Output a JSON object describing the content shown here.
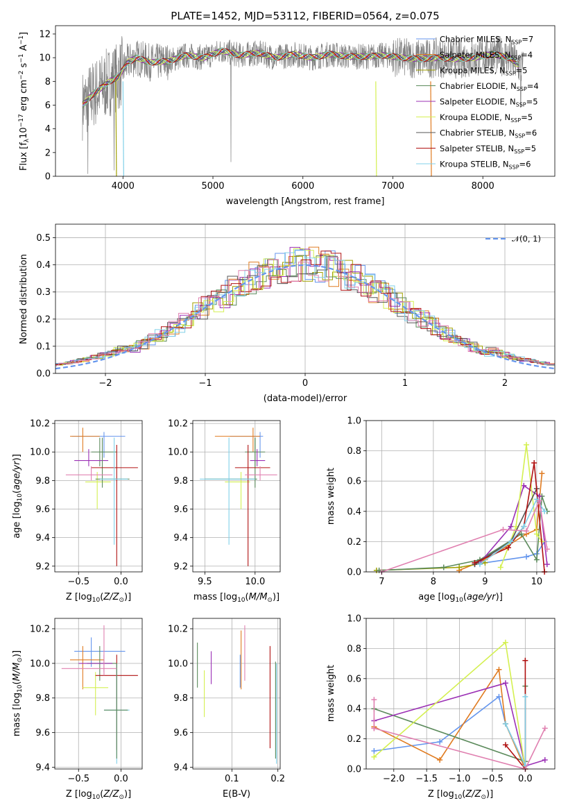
{
  "colors": {
    "c1": "#6495ed",
    "c2": "#e07b20",
    "c3": "#a0a000",
    "c4": "#5b8a5b",
    "c5": "#9b30b5",
    "c6": "#d4f050",
    "c7": "#555555",
    "c8": "#b01010",
    "c9": "#80d0e8",
    "c10": "#e080b0",
    "gray": "#808080"
  },
  "chart_data": [
    {
      "id": "spectrum",
      "type": "line",
      "title": "PLATE=1452, MJD=53112, FIBERID=0564, z=0.075",
      "xlabel": "wavelength [Angstrom, rest frame]",
      "ylabel": "Flux [f",
      "xlim": [
        3250,
        8800
      ],
      "ylim": [
        0,
        12.7
      ],
      "xticks": [
        4000,
        5000,
        6000,
        7000,
        8000
      ],
      "yticks": [
        0,
        2,
        4,
        6,
        8,
        10,
        12
      ],
      "legend": "top-right",
      "series": [
        {
          "name": "Chabrier MILES, N",
          "n": "7",
          "color": "c1"
        },
        {
          "name": "Salpeter MILES, N",
          "n": "4",
          "color": "c2"
        },
        {
          "name": "Kroupa MILES, N",
          "n": "5",
          "color": "c3"
        },
        {
          "name": "Chabrier ELODIE, N",
          "n": "4",
          "color": "c4"
        },
        {
          "name": "Salpeter ELODIE, N",
          "n": "5",
          "color": "c5"
        },
        {
          "name": "Kroupa ELODIE, N",
          "n": "5",
          "color": "c6"
        },
        {
          "name": "Chabrier STELIB, N",
          "n": "6",
          "color": "c7"
        },
        {
          "name": "Salpeter STELIB, N",
          "n": "5",
          "color": "c8"
        },
        {
          "name": "Kroupa STELIB, N",
          "n": "6",
          "color": "c9"
        }
      ],
      "model_curve": {
        "x": [
          3550,
          3650,
          3750,
          3850,
          3950,
          4050,
          4150,
          4300,
          4500,
          4700,
          4900,
          5100,
          5300,
          5500,
          5700,
          5900,
          6100,
          6300,
          6500,
          6700,
          6900,
          7100,
          7300,
          7500,
          7700,
          7900,
          8100,
          8300,
          8450
        ],
        "y": [
          6.0,
          6.8,
          7.4,
          8.0,
          8.4,
          9.6,
          10.0,
          9.6,
          9.7,
          10.2,
          10.0,
          10.6,
          10.2,
          10.4,
          10.0,
          10.3,
          10.0,
          10.3,
          10.1,
          10.1,
          10.2,
          10.0,
          9.9,
          10.0,
          9.9,
          10.0,
          10.3,
          10.0,
          9.0
        ]
      },
      "model_dropouts": [
        {
          "x": 3920,
          "color": "c3"
        },
        {
          "x": 4000,
          "color": "c9"
        },
        {
          "x": 6810,
          "color": "c6"
        },
        {
          "x": 7420,
          "color": "c2"
        }
      ]
    },
    {
      "id": "residuals",
      "type": "line",
      "xlabel": "(data-model)/error",
      "ylabel": "Normed distribution",
      "xlim": [
        -2.5,
        2.5
      ],
      "ylim": [
        0,
        0.55
      ],
      "xticks": [
        -2,
        -1,
        0,
        1,
        2
      ],
      "yticks": [
        0.0,
        0.1,
        0.2,
        0.3,
        0.4,
        0.5
      ],
      "legend": "top-right",
      "series": [
        {
          "name": "𝒩(0, 1)",
          "color": "c1",
          "style": "dashed"
        }
      ]
    },
    {
      "id": "z-age",
      "type": "scatter",
      "xlabel": "Z [log",
      "ylabel": "age  [log",
      "xlim": [
        -0.78,
        0.25
      ],
      "ylim": [
        9.16,
        10.22
      ],
      "xticks": [
        -0.5,
        0.0
      ],
      "yticks": [
        9.2,
        9.4,
        9.6,
        9.8,
        10.0,
        10.2
      ],
      "points": [
        {
          "x": -0.2,
          "y": 10.11,
          "xlo": -0.58,
          "xhi": 0.05,
          "ylo": 9.96,
          "yhi": 10.14,
          "c": "c1"
        },
        {
          "x": -0.45,
          "y": 10.11,
          "xlo": -0.6,
          "xhi": -0.25,
          "ylo": 10.0,
          "yhi": 10.17,
          "c": "c2"
        },
        {
          "x": -0.25,
          "y": 10.0,
          "xlo": -0.35,
          "xhi": -0.05,
          "ylo": 9.9,
          "yhi": 10.1,
          "c": "c4"
        },
        {
          "x": -0.38,
          "y": 9.94,
          "xlo": -0.55,
          "xhi": -0.15,
          "ylo": 9.9,
          "yhi": 10.02,
          "c": "c5"
        },
        {
          "x": -0.28,
          "y": 9.79,
          "xlo": -0.42,
          "xhi": -0.12,
          "ylo": 9.6,
          "yhi": 9.86,
          "c": "c6"
        },
        {
          "x": -0.22,
          "y": 9.81,
          "xlo": -0.3,
          "xhi": 0.1,
          "ylo": 9.75,
          "yhi": 10.1,
          "c": "c4"
        },
        {
          "x": -0.05,
          "y": 9.89,
          "xlo": -0.35,
          "xhi": 0.2,
          "ylo": 9.2,
          "yhi": 10.05,
          "c": "c8"
        },
        {
          "x": -0.08,
          "y": 9.81,
          "xlo": -0.25,
          "xhi": 0.08,
          "ylo": 9.35,
          "yhi": 10.1,
          "c": "c9"
        },
        {
          "x": -0.35,
          "y": 9.84,
          "xlo": -0.65,
          "xhi": -0.1,
          "ylo": 9.8,
          "yhi": 9.9,
          "c": "c10"
        }
      ]
    },
    {
      "id": "mass-age",
      "type": "scatter",
      "xlabel": "mass [log",
      "xlim": [
        9.38,
        10.25
      ],
      "ylim": [
        9.16,
        10.22
      ],
      "xticks": [
        9.5,
        10.0
      ],
      "yticks": [
        9.2,
        9.4,
        9.6,
        9.8,
        10.0,
        10.2
      ],
      "points": [
        {
          "x": 10.05,
          "y": 10.11,
          "xlo": 9.75,
          "xhi": 10.08,
          "ylo": 9.96,
          "yhi": 10.14,
          "c": "c1"
        },
        {
          "x": 9.98,
          "y": 10.11,
          "xlo": 9.6,
          "xhi": 10.05,
          "ylo": 10.0,
          "yhi": 10.17,
          "c": "c2"
        },
        {
          "x": 10.0,
          "y": 10.0,
          "xlo": 9.9,
          "xhi": 10.1,
          "ylo": 9.9,
          "yhi": 10.1,
          "c": "c4"
        },
        {
          "x": 10.02,
          "y": 9.94,
          "xlo": 9.95,
          "xhi": 10.1,
          "ylo": 9.9,
          "yhi": 10.02,
          "c": "c5"
        },
        {
          "x": 9.86,
          "y": 9.79,
          "xlo": 9.7,
          "xhi": 9.95,
          "ylo": 9.6,
          "yhi": 9.86,
          "c": "c6"
        },
        {
          "x": 10.0,
          "y": 9.81,
          "xlo": 9.5,
          "xhi": 10.02,
          "ylo": 9.75,
          "yhi": 10.1,
          "c": "c4"
        },
        {
          "x": 9.93,
          "y": 9.89,
          "xlo": 9.8,
          "xhi": 10.15,
          "ylo": 9.2,
          "yhi": 10.05,
          "c": "c8"
        },
        {
          "x": 9.74,
          "y": 9.81,
          "xlo": 9.45,
          "xhi": 10.0,
          "ylo": 9.35,
          "yhi": 10.1,
          "c": "c9"
        },
        {
          "x": 10.05,
          "y": 9.84,
          "xlo": 9.9,
          "xhi": 10.22,
          "ylo": 9.8,
          "yhi": 9.9,
          "c": "c10"
        }
      ]
    },
    {
      "id": "age-weight",
      "type": "line",
      "xlabel": "age  [log",
      "ylabel": "mass weight",
      "xlim": [
        6.7,
        10.35
      ],
      "ylim": [
        0,
        1.0
      ],
      "xticks": [
        7,
        8,
        9,
        10
      ],
      "yticks": [
        0.0,
        0.2,
        0.4,
        0.6,
        0.8,
        1.0
      ],
      "series": [
        {
          "c": "c1",
          "x": [
            8.8,
            9.8,
            10.0,
            10.15
          ],
          "y": [
            0.05,
            0.1,
            0.12,
            0.2
          ]
        },
        {
          "c": "c2",
          "x": [
            8.5,
            9.0,
            9.8,
            10.0,
            10.1
          ],
          "y": [
            0.01,
            0.08,
            0.25,
            0.28,
            0.65
          ]
        },
        {
          "c": "c3",
          "x": [
            6.9,
            8.5,
            9.0
          ],
          "y": [
            0.01,
            0.03,
            0.06
          ]
        },
        {
          "c": "c4",
          "x": [
            6.95,
            8.2,
            8.9,
            9.7,
            10.0,
            10.1,
            10.2
          ],
          "y": [
            0.01,
            0.03,
            0.08,
            0.25,
            0.08,
            0.5,
            0.4
          ]
        },
        {
          "c": "c5",
          "x": [
            8.9,
            9.5,
            9.75,
            10.05,
            10.2
          ],
          "y": [
            0.06,
            0.3,
            0.57,
            0.5,
            0.05
          ]
        },
        {
          "c": "c6",
          "x": [
            9.3,
            9.6,
            9.8,
            10.0,
            10.1
          ],
          "y": [
            0.03,
            0.3,
            0.84,
            0.25,
            0.2
          ]
        },
        {
          "c": "c7",
          "x": [
            8.8,
            9.5,
            10.0
          ],
          "y": [
            0.05,
            0.2,
            0.55
          ]
        },
        {
          "c": "c8",
          "x": [
            8.8,
            9.45,
            9.75,
            9.95,
            10.15
          ],
          "y": [
            0.06,
            0.16,
            0.3,
            0.72,
            0.0
          ]
        },
        {
          "c": "c9",
          "x": [
            8.9,
            9.5,
            9.75,
            10.0,
            10.15
          ],
          "y": [
            0.05,
            0.2,
            0.3,
            0.48,
            0.4
          ]
        },
        {
          "c": "c10",
          "x": [
            7.0,
            9.35,
            9.8,
            10.05,
            10.2
          ],
          "y": [
            0.0,
            0.28,
            0.27,
            0.47,
            0.15
          ]
        }
      ]
    },
    {
      "id": "z-mass",
      "type": "scatter",
      "xlabel": "Z [log",
      "ylabel": "mass [log",
      "xlim": [
        -0.78,
        0.25
      ],
      "ylim": [
        9.39,
        10.26
      ],
      "xticks": [
        -0.5,
        0.0
      ],
      "yticks": [
        9.4,
        9.6,
        9.8,
        10.0,
        10.2
      ],
      "points": [
        {
          "x": -0.35,
          "y": 10.07,
          "xlo": -0.55,
          "xhi": 0.05,
          "ylo": 9.98,
          "yhi": 10.15,
          "c": "c1"
        },
        {
          "x": -0.45,
          "y": 10.02,
          "xlo": -0.6,
          "xhi": -0.2,
          "ylo": 9.85,
          "yhi": 10.1,
          "c": "c2"
        },
        {
          "x": -0.25,
          "y": 10.0,
          "xlo": -0.4,
          "xhi": -0.05,
          "ylo": 9.9,
          "yhi": 10.1,
          "c": "c4"
        },
        {
          "x": -0.3,
          "y": 9.86,
          "xlo": -0.45,
          "xhi": -0.15,
          "ylo": 9.7,
          "yhi": 9.95,
          "c": "c6"
        },
        {
          "x": -0.2,
          "y": 10.0,
          "xlo": -0.5,
          "xhi": -0.1,
          "ylo": 9.95,
          "yhi": 10.05,
          "c": "c5"
        },
        {
          "x": -0.05,
          "y": 9.93,
          "xlo": -0.3,
          "xhi": 0.2,
          "ylo": 9.5,
          "yhi": 10.05,
          "c": "c8"
        },
        {
          "x": -0.05,
          "y": 9.73,
          "xlo": -0.2,
          "xhi": 0.1,
          "ylo": 9.42,
          "yhi": 10.0,
          "c": "c9"
        },
        {
          "x": -0.05,
          "y": 9.73,
          "xlo": -0.2,
          "xhi": 0.08,
          "ylo": 9.45,
          "yhi": 10.0,
          "c": "c4"
        },
        {
          "x": -0.2,
          "y": 9.97,
          "xlo": -0.7,
          "xhi": -0.05,
          "ylo": 9.93,
          "yhi": 10.22,
          "c": "c10"
        }
      ]
    },
    {
      "id": "ebv-mass",
      "type": "scatter",
      "xlabel": "E(B-V)",
      "xlim": [
        0.015,
        0.205
      ],
      "ylim": [
        9.39,
        10.26
      ],
      "xticks": [
        0.0,
        0.1,
        0.2
      ],
      "yticks": [
        9.4,
        9.6,
        9.8,
        10.0,
        10.2
      ],
      "points": [
        {
          "x": 0.118,
          "y": 9.97,
          "ylo": 9.86,
          "yhi": 10.05,
          "c": "c1"
        },
        {
          "x": 0.12,
          "y": 10.0,
          "ylo": 9.85,
          "yhi": 10.19,
          "c": "c2"
        },
        {
          "x": 0.025,
          "y": 9.99,
          "ylo": 9.86,
          "yhi": 10.12,
          "c": "c4"
        },
        {
          "x": 0.055,
          "y": 9.97,
          "ylo": 9.88,
          "yhi": 10.07,
          "c": "c5"
        },
        {
          "x": 0.04,
          "y": 9.86,
          "ylo": 9.69,
          "yhi": 9.96,
          "c": "c6"
        },
        {
          "x": 0.183,
          "y": 9.8,
          "ylo": 9.51,
          "yhi": 10.1,
          "c": "c8"
        },
        {
          "x": 0.197,
          "y": 9.73,
          "ylo": 9.42,
          "yhi": 10.0,
          "c": "c9"
        },
        {
          "x": 0.195,
          "y": 9.73,
          "ylo": 9.45,
          "yhi": 10.01,
          "c": "c4"
        },
        {
          "x": 0.128,
          "y": 10.0,
          "ylo": 9.9,
          "yhi": 10.22,
          "c": "c10"
        }
      ]
    },
    {
      "id": "z-weight",
      "type": "line",
      "xlabel": "Z [log",
      "ylabel": "mass weight",
      "xlim": [
        -2.42,
        0.45
      ],
      "ylim": [
        0,
        1.0
      ],
      "xticks": [
        -2.0,
        -1.5,
        -1.0,
        -0.5,
        0.0
      ],
      "yticks": [
        0.0,
        0.2,
        0.4,
        0.6,
        0.8,
        1.0
      ],
      "series": [
        {
          "c": "c1",
          "x": [
            -2.3,
            -1.3,
            -0.4,
            -0.3,
            0.0
          ],
          "y": [
            0.12,
            0.18,
            0.48,
            0.3,
            0.02
          ]
        },
        {
          "c": "c2",
          "x": [
            -2.3,
            -1.3,
            -0.4,
            -0.3,
            0.0
          ],
          "y": [
            0.28,
            0.06,
            0.66,
            0.3,
            0.0
          ]
        },
        {
          "c": "c4",
          "x": [
            -2.3,
            0.0,
            0.0
          ],
          "y": [
            0.4,
            0.05,
            0.55
          ]
        },
        {
          "c": "c5",
          "x": [
            -2.3,
            -0.3,
            0.0,
            0.3
          ],
          "y": [
            0.32,
            0.57,
            0.02,
            0.06
          ]
        },
        {
          "c": "c6",
          "x": [
            -2.3,
            -0.3,
            0.0
          ],
          "y": [
            0.08,
            0.84,
            0.0
          ]
        },
        {
          "c": "c8",
          "x": [
            -0.3,
            0.0,
            0.0
          ],
          "y": [
            0.16,
            0.0,
            0.72
          ]
        },
        {
          "c": "c9",
          "x": [
            -0.3,
            0.0,
            0.0
          ],
          "y": [
            0.3,
            0.02,
            0.48
          ]
        },
        {
          "c": "c10",
          "x": [
            -2.3,
            0.0,
            0.3
          ],
          "y": [
            0.27,
            0.0,
            0.27
          ]
        },
        {
          "c": "c10",
          "x": [
            -2.3,
            -2.3
          ],
          "y": [
            0.46,
            0.27
          ]
        }
      ]
    }
  ]
}
